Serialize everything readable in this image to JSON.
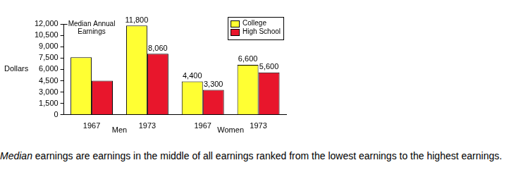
{
  "chart_data": {
    "type": "bar",
    "y_label": "Dollars",
    "annotations": [
      "Median Annual",
      "Earnings"
    ],
    "categories": [
      "1967",
      "1973",
      "1967",
      "1973"
    ],
    "groups": [
      "Men",
      "Men",
      "Women",
      "Women"
    ],
    "series": [
      {
        "name": "College",
        "color": "#ffff33",
        "values": [
          7600,
          11800,
          4400,
          6600
        ],
        "value_labels": [
          null,
          "11,800",
          "4,400",
          "6,600"
        ]
      },
      {
        "name": "High School",
        "color": "#e8162c",
        "values": [
          4500,
          8060,
          3300,
          5600
        ],
        "value_labels": [
          null,
          "8,060",
          "3,300",
          "5,600"
        ]
      }
    ],
    "ylim": [
      0,
      12000
    ],
    "yticks": [
      0,
      {
        "value": 1500,
        "label": "1,500"
      },
      {
        "value": 3000,
        "label": "3,000"
      },
      {
        "value": 4500,
        "label": "4,500"
      },
      {
        "value": 6000,
        "label": "6,000"
      },
      {
        "value": 7500,
        "label": "7,500"
      },
      {
        "value": 9000,
        "label": "9,000"
      },
      {
        "value": 10500,
        "label": "10,500"
      },
      {
        "value": 12000,
        "label": "12,000"
      }
    ],
    "grid": false,
    "legend": "upper right",
    "data_labels": true,
    "caption": [
      "Median",
      " earnings are earnings in the middle of all earnings ranked from the lowest earnings to the highest earnings."
    ]
  }
}
